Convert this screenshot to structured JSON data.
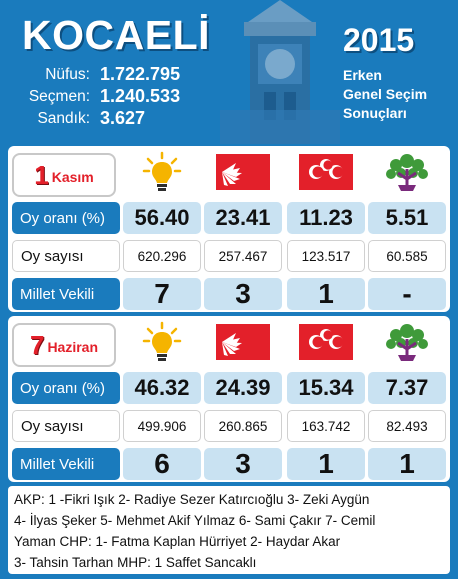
{
  "header": {
    "city": "KOCAELİ",
    "year": "2015",
    "subtitle": [
      "Erken",
      "Genel Seçim",
      "Sonuçları"
    ],
    "stats": [
      {
        "label": "Nüfus:",
        "value": "1.722.795"
      },
      {
        "label": "Seçmen:",
        "value": "1.240.533"
      },
      {
        "label": "Sandık:",
        "value": "3.627"
      }
    ]
  },
  "parties": [
    "AKP",
    "CHP",
    "MHP",
    "HDP"
  ],
  "elections": [
    {
      "date_num": "1",
      "date_month": "Kasım",
      "rows": {
        "oy_orani": {
          "label": "Oy oranı (%)",
          "values": [
            "56.40",
            "23.41",
            "11.23",
            "5.51"
          ]
        },
        "oy_sayisi": {
          "label": "Oy sayısı",
          "values": [
            "620.296",
            "257.467",
            "123.517",
            "60.585"
          ]
        },
        "millet_vekili": {
          "label": "Millet Vekili",
          "values": [
            "7",
            "3",
            "1",
            "-"
          ]
        }
      }
    },
    {
      "date_num": "7",
      "date_month": "Haziran",
      "rows": {
        "oy_orani": {
          "label": "Oy oranı (%)",
          "values": [
            "46.32",
            "24.39",
            "15.34",
            "7.37"
          ]
        },
        "oy_sayisi": {
          "label": "Oy sayısı",
          "values": [
            "499.906",
            "260.865",
            "163.742",
            "82.493"
          ]
        },
        "millet_vekili": {
          "label": "Millet Vekili",
          "values": [
            "6",
            "3",
            "1",
            "1"
          ]
        }
      }
    }
  ],
  "footer": [
    "AKP: 1 -Fikri Işık 2- Radiye Sezer Katırcıoğlu 3- Zeki Aygün",
    "4- İlyas Şeker 5- Mehmet Akif Yılmaz 6- Sami Çakır 7- Cemil",
    "Yaman CHP: 1- Fatma Kaplan Hürriyet 2- Haydar Akar",
    "3- Tahsin Tarhan MHP: 1 Saffet Sancaklı"
  ],
  "colors": {
    "brand_blue": "#1a7bbd",
    "light_blue": "#c9e2f2",
    "red": "#e3202a",
    "akp_yellow": "#f5b400",
    "hdp_green": "#3f9a3a"
  }
}
